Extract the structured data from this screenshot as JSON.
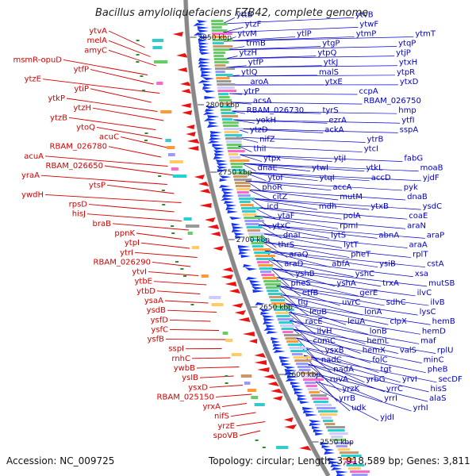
{
  "title": "Bacillus amyloliquefaciens FZB42, complete genome",
  "footer": {
    "accession": "Accession: NC_009725",
    "topology": "Topology: circular; Length: 3,918,589 bp; Genes: 3,811"
  },
  "colors": {
    "reverse_strand_labels": "#d40000",
    "forward_strand_labels": "#0000c8",
    "backbone": "#888888",
    "reverse_arrows": "#ee1111",
    "forward_arrows": "#1133ee"
  },
  "kbp_markers": [
    {
      "label": "2850 kbp",
      "kbp": 2850
    },
    {
      "label": "2800 kbp",
      "kbp": 2800
    },
    {
      "label": "2750 kbp",
      "kbp": 2750
    },
    {
      "label": "2700 kbp",
      "kbp": 2700
    },
    {
      "label": "2650 kbp",
      "kbp": 2650
    },
    {
      "label": "2600 kbp",
      "kbp": 2600
    },
    {
      "label": "2550 kbp",
      "kbp": 2550
    }
  ],
  "reverse_strand_genes": [
    "ytvA",
    "melA",
    "amyC",
    "msmR-opuD",
    "ytfP",
    "ytzE",
    "ytiP",
    "ytkP",
    "ytzH",
    "ytzB",
    "ytoQ",
    "acuC",
    "RBAM_026780",
    "acuA",
    "RBAM_026650",
    "yraA",
    "ytsP",
    "ywdH",
    "rpsD",
    "hisJ",
    "braB",
    "ppnK",
    "ytpI",
    "ytrI",
    "RBAM_026290",
    "ytvI",
    "ytbE",
    "ytbD",
    "ysaA",
    "ysdB",
    "ysfD",
    "ysfC",
    "ysfB",
    "sspI",
    "rnhC",
    "ywbB",
    "ysIB",
    "ysxD",
    "RBAM_025150",
    "yrxA",
    "nifS",
    "yrzE",
    "spoVB"
  ],
  "forward_strand_genes": [
    "yttB",
    "ytvB",
    "ytzF",
    "ytwF",
    "ytvM",
    "ytlP",
    "ytmP",
    "ytmT",
    "trmB",
    "ytgP",
    "ytqP",
    "ytzH",
    "ytpQ",
    "ytjP",
    "ytfP",
    "ytkJ",
    "ytxH",
    "ytlQ",
    "malS",
    "ytpR",
    "aroA",
    "ytxE",
    "ytxD",
    "ytrP",
    "ccpA",
    "acsA",
    "RBAM_026750",
    "RBAM_026730",
    "tyrS",
    "hmp",
    "yokH",
    "ezrA",
    "ytfI",
    "ytzD",
    "ackA",
    "sspA",
    "nifZ",
    "ytrB",
    "thiI",
    "ytcI",
    "ytpx",
    "ytjI",
    "fabG",
    "dnaE",
    "ytwI",
    "ytkL",
    "moaB",
    "ytoI",
    "ytqI",
    "accD",
    "yjdF",
    "phoR",
    "accA",
    "pyk",
    "citZ",
    "mutM",
    "dnaB",
    "icd",
    "mdh",
    "ytxB",
    "ysdC",
    "ytaF",
    "polA",
    "coaE",
    "ytxC",
    "rpmI",
    "araN",
    "dnaI",
    "lytS",
    "abnA",
    "araP",
    "thrS",
    "lytT",
    "araA",
    "araQ",
    "pheT",
    "rplT",
    "araD",
    "abfA",
    "ysiB",
    "cstA",
    "yshB",
    "yshC",
    "xsa",
    "pheS",
    "yshA",
    "trxA",
    "mutSB",
    "etfB",
    "gerE",
    "ilvC",
    "tig",
    "uvrC",
    "sdhC",
    "ilvB",
    "leuB",
    "lonA",
    "lysC",
    "racE",
    "leuA",
    "clpX",
    "hemB",
    "ilvH",
    "lonB",
    "hemD",
    "comC",
    "hemL",
    "maf",
    "ysxB",
    "hemX",
    "valS",
    "rplU",
    "nadC",
    "folC",
    "minC",
    "nadA",
    "tgt",
    "pheB",
    "ruvA",
    "yrbG",
    "yrvI",
    "secDF",
    "yrzK",
    "yrrC",
    "hisS",
    "yrrB",
    "yrrI",
    "alaS",
    "udk",
    "yrhI",
    "yjdI"
  ]
}
